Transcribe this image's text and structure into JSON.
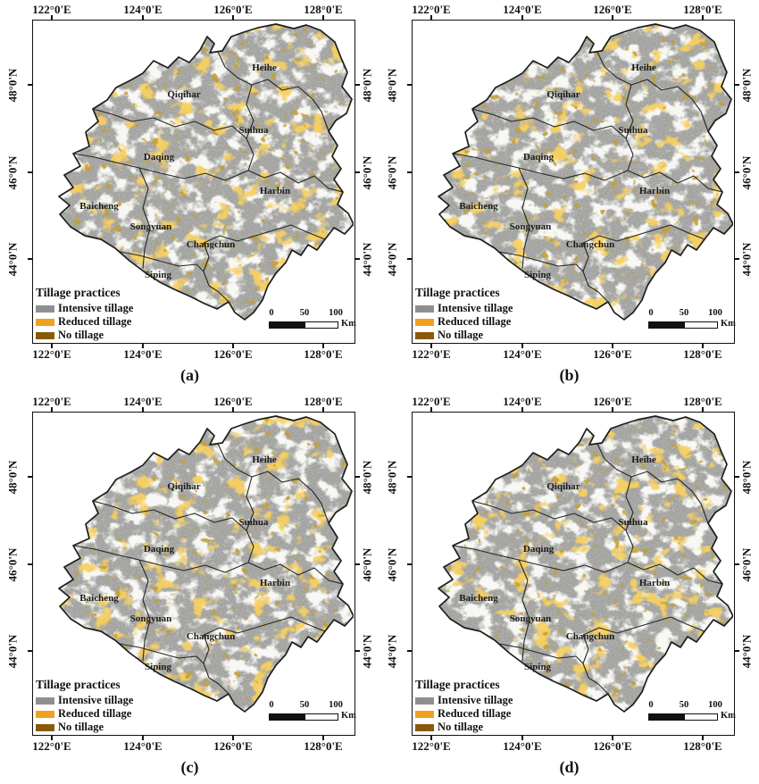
{
  "figure": {
    "description": "Four-panel map figure of tillage practices in Northeast China",
    "panels": [
      {
        "id": "a",
        "label": "(a)"
      },
      {
        "id": "b",
        "label": "(b)"
      },
      {
        "id": "c",
        "label": "(c)"
      },
      {
        "id": "d",
        "label": "(d)"
      }
    ],
    "axis": {
      "lon_ticks": [
        "122°0'E",
        "124°0'E",
        "126°0'E",
        "128°0'E"
      ],
      "lat_ticks": [
        "48°0'N",
        "46°0'N",
        "44°0'N"
      ]
    },
    "cities": [
      "Heihe",
      "Qiqihar",
      "Suihua",
      "Daqing",
      "Harbin",
      "Baicheng",
      "Songyuan",
      "Changchun",
      "Siping"
    ],
    "legend": {
      "title": "Tillage practices",
      "items": [
        {
          "label": "Intensive tillage",
          "color": "#8f8f8f"
        },
        {
          "label": "Reduced tillage",
          "color": "#efa120"
        },
        {
          "label": "No tillage",
          "color": "#8a5a0a"
        }
      ]
    },
    "scalebar": {
      "ticks": [
        "0",
        "50",
        "100"
      ],
      "unit": "Km"
    },
    "colors": {
      "map_base_gray": "#a3a3a1",
      "reduced_tillage_orange": "#eda11f",
      "no_tillage_brown": "#8a5a0a",
      "boundary_line": "#1d1d1d"
    }
  }
}
